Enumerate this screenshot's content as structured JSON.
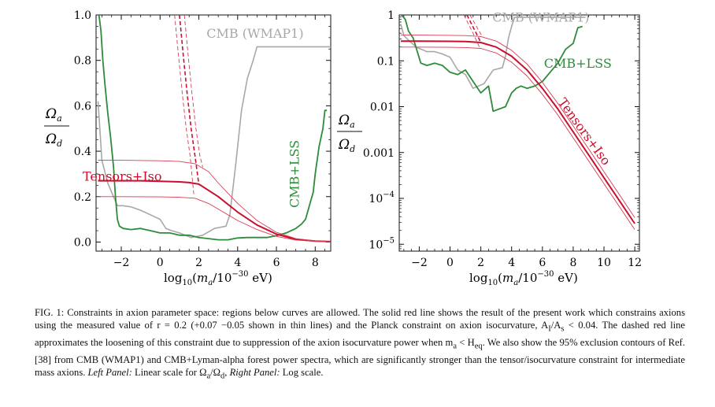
{
  "figure": {
    "caption_parts": [
      "FIG. 1: Constraints in axion parameter space: regions below curves are allowed. The solid red line shows the result of the present work which constrains axions using the measured value of r = 0.2 (+0.07 −0.05 shown in thin lines) and the Planck constraint on axion isocurvature, A",
      "I",
      "/A",
      "s",
      " < 0.04. The dashed red line approximates the loosening of this constraint due to suppression of the axion isocurvature power when m",
      "a",
      " < H",
      "eq",
      ". We also show the 95% exclusion contours of Ref. [38] from CMB (WMAP1) and CMB+Lyman-alpha forest power spectra, which are significantly stronger than the tensor/isocurvature constraint for intermediate mass axions. ",
      "Left Panel:",
      " Linear scale for Ω",
      "a",
      "/Ω",
      "d",
      ", ",
      "Right Panel:",
      " Log scale."
    ]
  },
  "chart_data": [
    {
      "type": "line",
      "title": "",
      "scale": "linear",
      "xlabel": "log10(m_a/10^-30 eV)",
      "ylabel": "Ω_a/Ω_d",
      "xlim": [
        -3.3,
        8.8
      ],
      "ylim": [
        -0.04,
        1.0
      ],
      "xticks": [
        -2,
        0,
        2,
        4,
        6,
        8
      ],
      "xtick_labels": [
        "−2",
        "0",
        "2",
        "4",
        "6",
        "8"
      ],
      "yticks": [
        0.0,
        0.2,
        0.4,
        0.6,
        0.8,
        1.0
      ],
      "ytick_labels": [
        "0.0",
        "0.2",
        "0.4",
        "0.6",
        "0.8",
        "1.0"
      ],
      "annotations": [
        {
          "text": "CMB (WMAP1)",
          "x": 4.9,
          "y": 0.9,
          "color": "#a8a8a8"
        },
        {
          "text": "CMB+LSS",
          "x": 7.15,
          "y": 0.3,
          "color": "#2e8b3a",
          "rotate": -90
        },
        {
          "text": "Tensors+Iso",
          "x": -1.95,
          "y": 0.27,
          "color": "#c8102e"
        }
      ],
      "series": [
        {
          "name": "CMB (WMAP1)",
          "color": "#a8a8a8",
          "width": 1.6,
          "x": [
            -3.2,
            -3.0,
            -2.7,
            -2.4,
            -2.2,
            -1.9,
            -1.5,
            -1.0,
            -0.5,
            0.0,
            0.3,
            0.6,
            1.0,
            1.6,
            2.2,
            2.8,
            3.4,
            3.6,
            3.9,
            4.2,
            4.5,
            4.8,
            5.0,
            5.3,
            8.8
          ],
          "y": [
            0.62,
            0.36,
            0.26,
            0.2,
            0.16,
            0.16,
            0.155,
            0.14,
            0.12,
            0.1,
            0.06,
            0.05,
            0.04,
            0.02,
            0.03,
            0.06,
            0.07,
            0.12,
            0.34,
            0.58,
            0.72,
            0.8,
            0.86,
            0.86,
            0.86
          ]
        },
        {
          "name": "CMB+LSS",
          "color": "#2e8b3a",
          "width": 1.8,
          "x": [
            -3.15,
            -3.05,
            -2.95,
            -2.85,
            -2.7,
            -2.55,
            -2.4,
            -2.3,
            -2.2,
            -2.1,
            -1.9,
            -1.5,
            -1.0,
            -0.5,
            0.0,
            0.5,
            1.0,
            1.5,
            2.0,
            2.5,
            3.0,
            3.5,
            4.0,
            4.5,
            5.0,
            5.5,
            6.0,
            6.5,
            7.0,
            7.3,
            7.5,
            7.7,
            7.9,
            8.0,
            8.2,
            8.4,
            8.5,
            8.6
          ],
          "y": [
            1.0,
            0.93,
            0.8,
            0.7,
            0.57,
            0.46,
            0.33,
            0.2,
            0.1,
            0.07,
            0.06,
            0.055,
            0.06,
            0.05,
            0.04,
            0.04,
            0.03,
            0.03,
            0.02,
            0.015,
            0.01,
            0.01,
            0.018,
            0.02,
            0.02,
            0.02,
            0.028,
            0.04,
            0.06,
            0.08,
            0.1,
            0.16,
            0.22,
            0.3,
            0.42,
            0.5,
            0.58,
            0.58
          ]
        },
        {
          "name": "Tensors+Iso (r=0.2)",
          "color": "#c8102e",
          "width": 2.0,
          "x": [
            -3.2,
            -2.0,
            -1.0,
            0.0,
            1.0,
            1.5,
            2.0,
            3.0,
            4.0,
            5.0,
            6.0,
            7.0,
            8.0,
            8.8
          ],
          "y": [
            0.27,
            0.27,
            0.27,
            0.268,
            0.265,
            0.262,
            0.255,
            0.2,
            0.132,
            0.075,
            0.035,
            0.012,
            0.004,
            0.002
          ]
        },
        {
          "name": "Tensors+Iso (r=0.27)",
          "color": "#d83a52",
          "width": 0.9,
          "x": [
            -3.2,
            -2.0,
            0.0,
            1.0,
            1.8,
            2.5,
            3.0,
            4.0,
            5.0,
            6.0,
            7.0,
            8.0,
            8.8
          ],
          "y": [
            0.36,
            0.36,
            0.358,
            0.355,
            0.345,
            0.31,
            0.26,
            0.17,
            0.095,
            0.043,
            0.015,
            0.005,
            0.002
          ]
        },
        {
          "name": "Tensors+Iso (r=0.15)",
          "color": "#d83a52",
          "width": 0.9,
          "x": [
            -3.2,
            -2.0,
            0.0,
            1.0,
            1.8,
            2.5,
            3.0,
            4.0,
            5.0,
            6.0,
            7.0,
            8.0,
            8.8
          ],
          "y": [
            0.2,
            0.2,
            0.199,
            0.197,
            0.193,
            0.17,
            0.145,
            0.095,
            0.055,
            0.025,
            0.009,
            0.003,
            0.001
          ]
        },
        {
          "name": "Dashed (r=0.2)",
          "color": "#c8102e",
          "width": 1.6,
          "dash": "5,3",
          "x": [
            1.0,
            1.2,
            1.4,
            1.6,
            1.8,
            2.0
          ],
          "y": [
            1.0,
            0.82,
            0.65,
            0.5,
            0.38,
            0.255
          ]
        },
        {
          "name": "Dashed (r=0.27)",
          "color": "#d83a52",
          "width": 0.9,
          "dash": "5,3",
          "x": [
            1.25,
            1.45,
            1.65,
            1.85,
            2.05,
            2.2
          ],
          "y": [
            1.0,
            0.82,
            0.65,
            0.5,
            0.38,
            0.33
          ]
        },
        {
          "name": "Dashed (r=0.15)",
          "color": "#d83a52",
          "width": 0.9,
          "dash": "5,3",
          "x": [
            0.75,
            0.95,
            1.15,
            1.35,
            1.55,
            1.75
          ],
          "y": [
            1.0,
            0.82,
            0.65,
            0.5,
            0.38,
            0.2
          ]
        }
      ]
    },
    {
      "type": "line",
      "title": "",
      "scale": "log",
      "xlabel": "log10(m_a/10^-30 eV)",
      "ylabel": "Ω_a/Ω_d",
      "xlim": [
        -3.3,
        12.3
      ],
      "ylim_log10": [
        -5.15,
        0.0
      ],
      "xticks": [
        -2,
        0,
        2,
        4,
        6,
        8,
        10,
        12
      ],
      "xtick_labels": [
        "−2",
        "0",
        "2",
        "4",
        "6",
        "8",
        "10",
        "12"
      ],
      "yticks_log10": [
        0,
        -1,
        -2,
        -3,
        -4,
        -5
      ],
      "ytick_labels": [
        "1",
        "0.1",
        "0.01",
        "0.001",
        "10−4",
        "10−5"
      ],
      "annotations": [
        {
          "text": "CMB (WMAP1)",
          "x": 5.9,
          "y_log10": -0.15,
          "color": "#a8a8a8"
        },
        {
          "text": "CMB+LSS",
          "x": 8.3,
          "y_log10": -1.15,
          "color": "#2e8b3a"
        },
        {
          "text": "Tensors+Iso",
          "x": 8.5,
          "y_log10": -2.6,
          "color": "#c8102e",
          "rotate": 54
        }
      ],
      "series": [
        {
          "name": "CMB (WMAP1)",
          "color": "#a8a8a8",
          "width": 1.6,
          "x": [
            -3.2,
            -3.0,
            -2.6,
            -2.2,
            -1.5,
            -1.0,
            -0.5,
            0.0,
            0.5,
            1.0,
            1.5,
            2.2,
            2.8,
            3.4,
            3.6,
            3.8,
            4.0,
            4.2,
            8.8
          ],
          "y_log10": [
            -0.2,
            -0.45,
            -0.58,
            -0.7,
            -0.8,
            -0.8,
            -0.85,
            -0.92,
            -1.2,
            -1.3,
            -1.6,
            -1.5,
            -1.2,
            -1.15,
            -0.9,
            -0.5,
            -0.25,
            -0.05,
            -0.05
          ]
        },
        {
          "name": "CMB+LSS",
          "color": "#2e8b3a",
          "width": 1.8,
          "x": [
            -3.15,
            -2.9,
            -2.7,
            -2.4,
            -2.2,
            -1.9,
            -1.5,
            -1.0,
            -0.5,
            0.0,
            0.5,
            1.0,
            1.5,
            2.0,
            2.5,
            2.8,
            3.2,
            3.6,
            4.0,
            4.3,
            4.6,
            5.0,
            5.5,
            6.0,
            6.5,
            7.0,
            7.5,
            8.0,
            8.3,
            8.6
          ],
          "y_log10": [
            0.0,
            -0.1,
            -0.35,
            -0.5,
            -0.72,
            -1.05,
            -1.1,
            -1.05,
            -1.1,
            -1.25,
            -1.3,
            -1.2,
            -1.45,
            -1.7,
            -1.55,
            -2.1,
            -2.05,
            -2.0,
            -1.7,
            -1.6,
            -1.55,
            -1.6,
            -1.55,
            -1.45,
            -1.25,
            -1.05,
            -0.75,
            -0.62,
            -0.28,
            -0.25
          ]
        },
        {
          "name": "Tensors+Iso (r=0.2)",
          "color": "#c8102e",
          "width": 2.0,
          "x": [
            -3.2,
            -2.0,
            0.0,
            1.0,
            2.0,
            3.0,
            4.0,
            5.0,
            6.0,
            7.0,
            8.0,
            9.0,
            10.0,
            11.0,
            12.0
          ],
          "y_log10": [
            -0.57,
            -0.57,
            -0.575,
            -0.58,
            -0.6,
            -0.7,
            -0.9,
            -1.2,
            -1.6,
            -2.05,
            -2.55,
            -3.05,
            -3.55,
            -4.05,
            -4.55
          ]
        },
        {
          "name": "Tensors+Iso (r=0.27)",
          "color": "#d83a52",
          "width": 0.9,
          "x": [
            -3.2,
            -2.0,
            0.0,
            1.0,
            2.0,
            3.0,
            4.0,
            5.0,
            6.0,
            7.0,
            8.0,
            9.0,
            10.0,
            11.0,
            12.0
          ],
          "y_log10": [
            -0.44,
            -0.44,
            -0.445,
            -0.45,
            -0.47,
            -0.57,
            -0.77,
            -1.07,
            -1.47,
            -1.93,
            -2.42,
            -2.92,
            -3.42,
            -3.92,
            -4.42
          ]
        },
        {
          "name": "Tensors+Iso (r=0.15)",
          "color": "#d83a52",
          "width": 0.9,
          "x": [
            -3.2,
            -2.0,
            0.0,
            1.0,
            2.0,
            3.0,
            4.0,
            5.0,
            6.0,
            7.0,
            8.0,
            9.0,
            10.0,
            11.0,
            12.0
          ],
          "y_log10": [
            -0.7,
            -0.7,
            -0.705,
            -0.71,
            -0.73,
            -0.83,
            -1.03,
            -1.33,
            -1.73,
            -2.18,
            -2.68,
            -3.18,
            -3.68,
            -4.18,
            -4.68
          ]
        },
        {
          "name": "Dashed (r=0.2)",
          "color": "#c8102e",
          "width": 1.6,
          "dash": "5,3",
          "x": [
            1.1,
            1.4,
            1.7,
            2.0
          ],
          "y_log10": [
            0.0,
            -0.2,
            -0.4,
            -0.6
          ]
        },
        {
          "name": "Dashed (r=0.27)",
          "color": "#d83a52",
          "width": 0.9,
          "dash": "5,3",
          "x": [
            1.3,
            1.6,
            1.9,
            2.1
          ],
          "y_log10": [
            0.0,
            -0.18,
            -0.36,
            -0.47
          ]
        },
        {
          "name": "Dashed (r=0.15)",
          "color": "#d83a52",
          "width": 0.9,
          "dash": "5,3",
          "x": [
            0.9,
            1.2,
            1.5,
            1.8,
            1.9
          ],
          "y_log10": [
            0.0,
            -0.2,
            -0.4,
            -0.62,
            -0.7
          ]
        }
      ]
    }
  ]
}
